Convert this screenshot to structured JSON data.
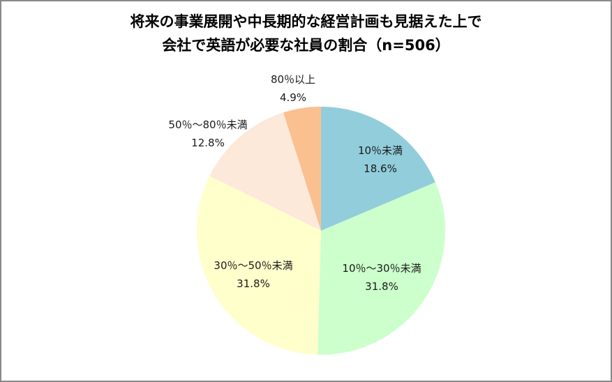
{
  "chart_data": {
    "type": "pie",
    "title": "将来の事業展開や中長期的な経営計画も見据えた上で会社で英語が必要な社員の割合（n=506）",
    "title_lines": [
      "将来の事業展開や中長期的な経営計画も見据えた上で",
      "会社で英語が必要な社員の割合（n=506）"
    ],
    "n": 506,
    "categories": [
      "10％未満",
      "10％～30％未満",
      "30％～50％未満",
      "50％～80％未満",
      "80％以上"
    ],
    "values": [
      18.6,
      31.8,
      31.8,
      12.8,
      4.9
    ],
    "value_labels": [
      "18.6%",
      "31.8%",
      "31.8%",
      "12.8%",
      "4.9%"
    ],
    "colors": [
      "#92CDDC",
      "#CCFFCC",
      "#FFFFCC",
      "#FDE9D9",
      "#FAC090"
    ],
    "start_angle": "12 o'clock, clockwise",
    "legend": "none (data labels with category names)"
  },
  "slices": [
    {
      "category": "10％未満",
      "value": "18.6%"
    },
    {
      "category": "10％～30％未満",
      "value": "31.8%"
    },
    {
      "category": "30％～50％未満",
      "value": "31.8%"
    },
    {
      "category": "50％～80％未満",
      "value": "12.8%"
    },
    {
      "category": "80％以上",
      "value": "4.9%"
    }
  ],
  "title": {
    "line1": "将来の事業展開や中長期的な経営計画も見据えた上で",
    "line2": "会社で英語が必要な社員の割合（n=506）"
  }
}
